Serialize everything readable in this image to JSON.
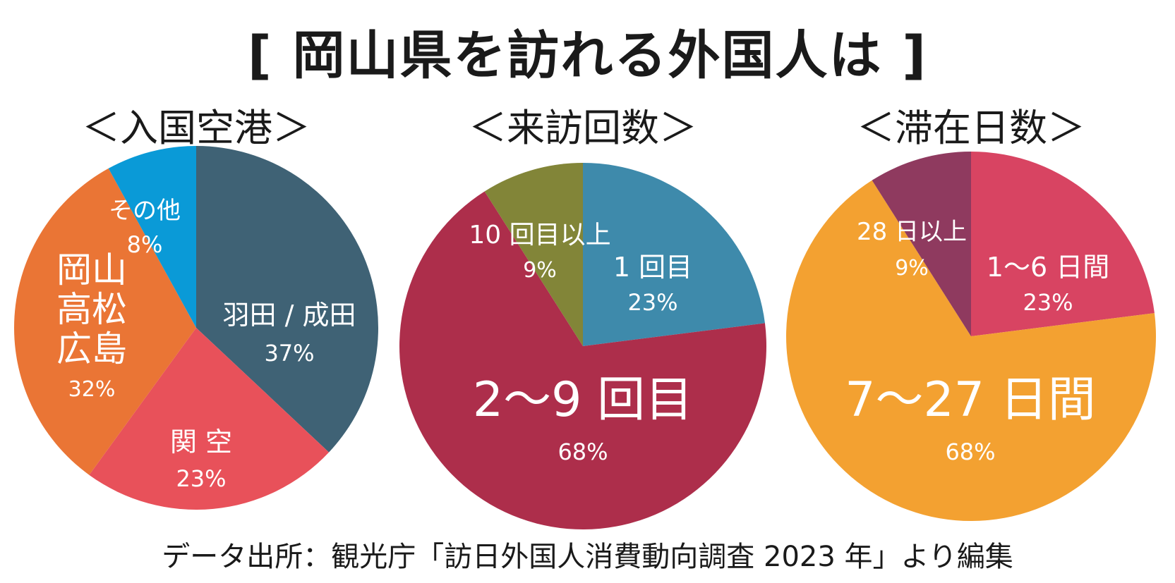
{
  "title": "[ 岡山県を訪れる外国人は ]",
  "source": "データ出所：観光庁「訪日外国人消費動向調査 2023 年」より編集",
  "chart_data": [
    {
      "type": "pie",
      "title": "＜入国空港＞",
      "slices": [
        {
          "label": "羽田 / 成田",
          "value": 37,
          "pct": "37%",
          "color": "#3f6275"
        },
        {
          "label": "関 空",
          "value": 23,
          "pct": "23%",
          "color": "#e8515a"
        },
        {
          "label": "岡山\n高松\n広島",
          "value": 32,
          "pct": "32%",
          "color": "#ea7535"
        },
        {
          "label": "その他",
          "value": 8,
          "pct": "8%",
          "color": "#0a9ad7"
        }
      ]
    },
    {
      "type": "pie",
      "title": "＜来訪回数＞",
      "slices": [
        {
          "label": "1 回目",
          "value": 23,
          "pct": "23%",
          "color": "#3e8aab"
        },
        {
          "label": "2～9 回目",
          "value": 68,
          "pct": "68%",
          "color": "#ad2e4b"
        },
        {
          "label": "10 回目以上",
          "value": 9,
          "pct": "9%",
          "color": "#828538"
        }
      ]
    },
    {
      "type": "pie",
      "title": "＜滞在日数＞",
      "slices": [
        {
          "label": "1～6 日間",
          "value": 23,
          "pct": "23%",
          "color": "#d84462"
        },
        {
          "label": "7～27 日間",
          "value": 68,
          "pct": "68%",
          "color": "#f3a131"
        },
        {
          "label": "28 日以上",
          "value": 9,
          "pct": "9%",
          "color": "#8f3a5f"
        }
      ]
    }
  ]
}
